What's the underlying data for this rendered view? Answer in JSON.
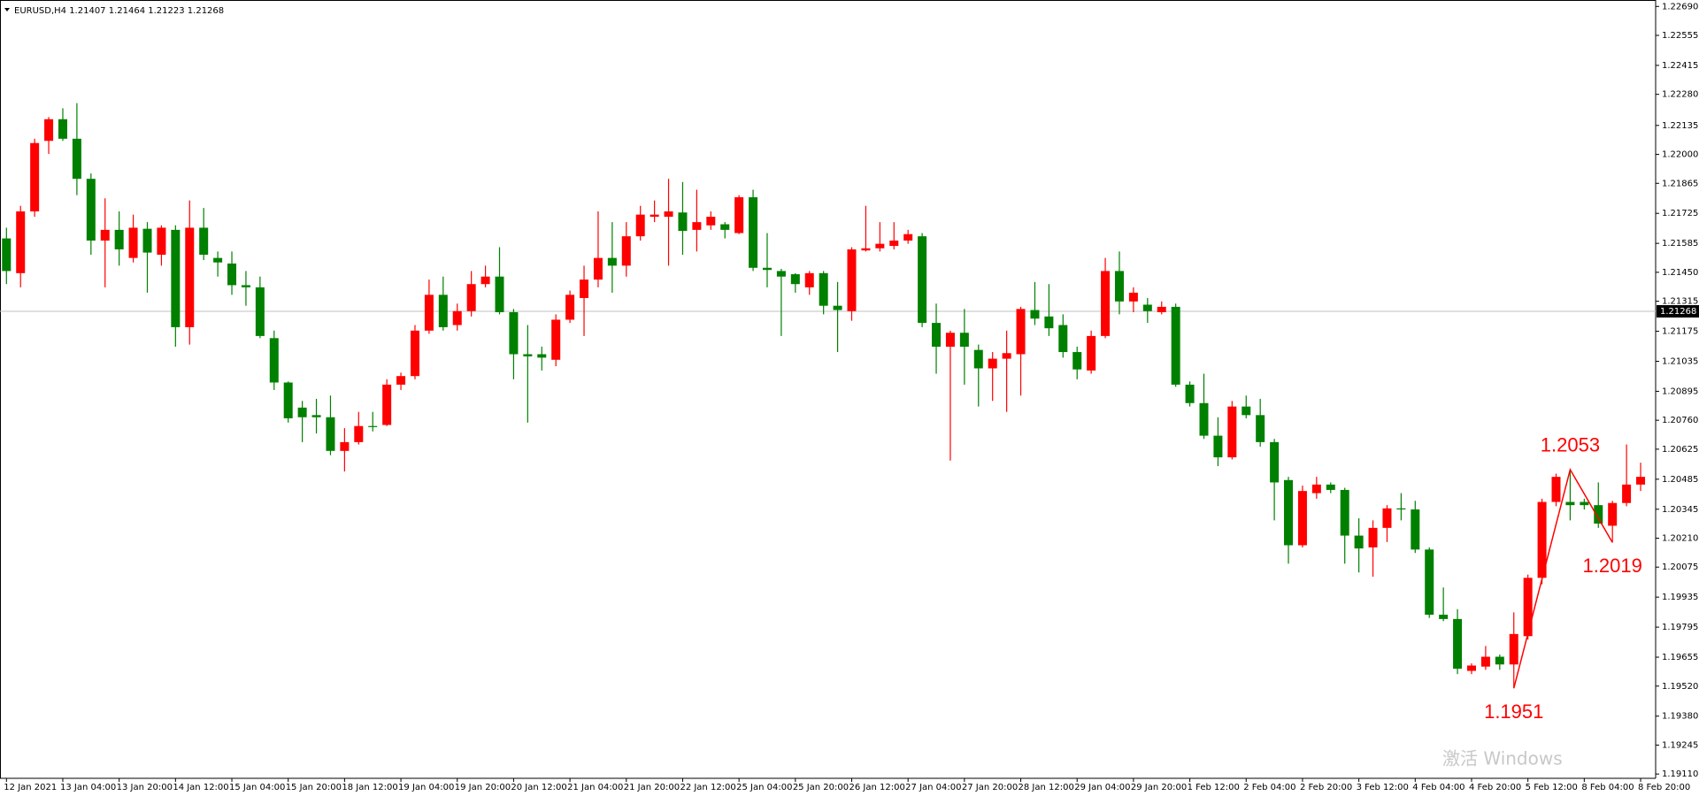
{
  "chart_data": {
    "type": "candlestick",
    "title": "EURUSD,H4  1.21407 1.21464 1.21223 1.21268",
    "categories": [
      "12 Jan 2021",
      null,
      null,
      null,
      "13 Jan 04:00",
      null,
      null,
      null,
      "13 Jan 20:00",
      null,
      null,
      null,
      "14 Jan 12:00",
      null,
      null,
      null,
      "15 Jan 04:00",
      null,
      null,
      null,
      "15 Jan 20:00",
      null,
      null,
      null,
      "18 Jan 12:00",
      null,
      null,
      null,
      "19 Jan 04:00",
      null,
      null,
      null,
      "19 Jan 20:00",
      null,
      null,
      null,
      "20 Jan 12:00",
      null,
      null,
      null,
      "21 Jan 04:00",
      null,
      null,
      null,
      "21 Jan 20:00",
      null,
      null,
      null,
      "22 Jan 12:00",
      null,
      null,
      null,
      "25 Jan 04:00",
      null,
      null,
      null,
      "25 Jan 20:00",
      null,
      null,
      null,
      "26 Jan 12:00",
      null,
      null,
      null,
      "27 Jan 04:00",
      null,
      null,
      null,
      "27 Jan 20:00",
      null,
      null,
      null,
      "28 Jan 12:00",
      null,
      null,
      null,
      "29 Jan 04:00",
      null,
      null,
      null,
      "29 Jan 20:00",
      null,
      null,
      null,
      "1 Feb 12:00",
      null,
      null,
      null,
      "2 Feb 04:00",
      null,
      null,
      null,
      "2 Feb 20:00",
      null,
      null,
      null,
      "3 Feb 12:00",
      null,
      null,
      null,
      "4 Feb 04:00",
      null,
      null,
      null,
      "4 Feb 20:00",
      null,
      null,
      null,
      "5 Feb 12:00",
      null,
      null,
      null,
      "8 Feb 04:00",
      null,
      null,
      null,
      "8 Feb 20:00"
    ],
    "open": [
      1.21608,
      1.21446,
      1.21734,
      1.22063,
      1.22164,
      1.22073,
      1.21886,
      1.21598,
      1.21648,
      1.21517,
      1.21653,
      1.21532,
      1.21648,
      1.21194,
      1.21658,
      1.21517,
      1.21491,
      1.2139,
      1.2138,
      1.21143,
      1.20936,
      1.20819,
      1.20784,
      1.20774,
      1.20617,
      1.20658,
      1.20733,
      1.20738,
      1.20926,
      1.20966,
      1.21178,
      1.21345,
      1.21204,
      1.21269,
      1.21395,
      1.2143,
      1.21264,
      1.21068,
      1.21068,
      1.21042,
      1.21229,
      1.2133,
      1.21416,
      1.21517,
      1.21481,
      1.21618,
      1.21709,
      1.21709,
      1.21729,
      1.21648,
      1.21669,
      1.21674,
      1.21633,
      1.218,
      1.21471,
      1.21456,
      1.21441,
      1.2138,
      1.21446,
      1.21294,
      1.21269,
      1.21552,
      1.21562,
      1.21573,
      1.21598,
      1.21618,
      1.21214,
      1.21103,
      1.21168,
      1.21088,
      1.21002,
      1.21047,
      1.21068,
      1.21274,
      1.21244,
      1.21204,
      1.21078,
      1.20992,
      1.21153,
      1.21456,
      1.21314,
      1.21299,
      1.21264,
      1.21289,
      1.20926,
      1.2084,
      1.20688,
      1.20587,
      1.20824,
      1.20784,
      1.20658,
      1.20481,
      1.20177,
      1.2042,
      1.2046,
      1.20435,
      1.20222,
      1.20167,
      1.20258,
      1.20349,
      1.20344,
      1.20157,
      1.19853,
      1.19833,
      1.19591,
      1.19611,
      1.19657,
      1.19621,
      1.19753,
      1.20025,
      1.20379,
      1.20379,
      1.20379,
      1.20364,
      1.20268,
      1.20374,
      1.2046
    ],
    "high": [
      1.21658,
      1.2176,
      1.22073,
      1.22174,
      1.22215,
      1.22239,
      1.21911,
      1.21795,
      1.21734,
      1.21719,
      1.21684,
      1.21669,
      1.21669,
      1.21785,
      1.2175,
      1.21547,
      1.21547,
      1.21456,
      1.2143,
      1.21178,
      1.20941,
      1.2085,
      1.2086,
      1.20875,
      1.20723,
      1.20799,
      1.20799,
      1.20951,
      1.20982,
      1.21204,
      1.21416,
      1.2143,
      1.21304,
      1.21456,
      1.21481,
      1.21567,
      1.21279,
      1.21204,
      1.21103,
      1.21254,
      1.21365,
      1.21481,
      1.21734,
      1.21684,
      1.21684,
      1.2176,
      1.21785,
      1.21886,
      1.21871,
      1.21835,
      1.21734,
      1.21684,
      1.2181,
      1.21835,
      1.21633,
      1.21466,
      1.21446,
      1.21456,
      1.21456,
      1.21405,
      1.21567,
      1.2176,
      1.21684,
      1.21684,
      1.21648,
      1.21633,
      1.21304,
      1.21178,
      1.21279,
      1.21113,
      1.21078,
      1.21178,
      1.21289,
      1.21405,
      1.21395,
      1.21254,
      1.21103,
      1.21178,
      1.21517,
      1.21547,
      1.2138,
      1.2133,
      1.21314,
      1.21304,
      1.20941,
      1.20977,
      1.20774,
      1.2085,
      1.20875,
      1.2086,
      1.20673,
      1.20496,
      1.20455,
      1.20496,
      1.2047,
      1.20445,
      1.20303,
      1.20293,
      1.20364,
      1.2042,
      1.20384,
      1.20167,
      1.1998,
      1.19879,
      1.19626,
      1.19707,
      1.19667,
      1.19864,
      1.2004,
      1.20394,
      1.20511,
      1.2053,
      1.20394,
      1.2047,
      1.20384,
      1.20647,
      1.20562
    ],
    "low": [
      1.21395,
      1.2138,
      1.21709,
      1.22002,
      1.22063,
      1.2181,
      1.21532,
      1.2138,
      1.21481,
      1.21496,
      1.21355,
      1.21481,
      1.21103,
      1.21113,
      1.21507,
      1.2143,
      1.21345,
      1.21294,
      1.21143,
      1.20901,
      1.20749,
      1.20658,
      1.20698,
      1.20597,
      1.20521,
      1.20647,
      1.20708,
      1.20733,
      1.20901,
      1.20951,
      1.21163,
      1.21178,
      1.21178,
      1.21244,
      1.2138,
      1.21254,
      1.20951,
      1.20749,
      1.20992,
      1.21012,
      1.21214,
      1.21153,
      1.2138,
      1.21355,
      1.2143,
      1.21598,
      1.21684,
      1.21481,
      1.21532,
      1.21547,
      1.21648,
      1.21608,
      1.21628,
      1.21456,
      1.2138,
      1.21153,
      1.21355,
      1.21345,
      1.21254,
      1.21078,
      1.21224,
      1.21547,
      1.21547,
      1.21557,
      1.21583,
      1.21194,
      1.20977,
      1.20572,
      1.20926,
      1.20824,
      1.2085,
      1.20799,
      1.20875,
      1.21204,
      1.21153,
      1.21052,
      1.20951,
      1.20977,
      1.21143,
      1.21254,
      1.21264,
      1.21214,
      1.21254,
      1.20916,
      1.20824,
      1.20673,
      1.20546,
      1.20577,
      1.20769,
      1.20637,
      1.20293,
      1.20091,
      1.20167,
      1.20394,
      1.2042,
      1.20091,
      1.2005,
      1.2003,
      1.20192,
      1.20293,
      1.20141,
      1.19838,
      1.19823,
      1.19576,
      1.19576,
      1.19596,
      1.19596,
      1.1951,
      1.19737,
      1.19995,
      1.20359,
      1.20293,
      1.20344,
      1.20258,
      1.2019,
      1.20359,
      1.2043
    ],
    "close": [
      1.21456,
      1.21734,
      1.22053,
      1.22164,
      1.22073,
      1.21886,
      1.21598,
      1.21648,
      1.21557,
      1.21658,
      1.21542,
      1.21658,
      1.21194,
      1.21658,
      1.21532,
      1.21496,
      1.2139,
      1.2138,
      1.21153,
      1.20936,
      1.20769,
      1.20774,
      1.20774,
      1.20617,
      1.20658,
      1.20733,
      1.20728,
      1.20926,
      1.20966,
      1.21178,
      1.21345,
      1.21194,
      1.21269,
      1.21395,
      1.2143,
      1.21264,
      1.21068,
      1.21058,
      1.21052,
      1.21229,
      1.21345,
      1.21416,
      1.21517,
      1.21481,
      1.21618,
      1.21719,
      1.21719,
      1.21734,
      1.21643,
      1.21684,
      1.21709,
      1.21648,
      1.218,
      1.21471,
      1.21461,
      1.2143,
      1.21395,
      1.21446,
      1.21294,
      1.21274,
      1.21557,
      1.21562,
      1.21583,
      1.21598,
      1.21628,
      1.21214,
      1.21103,
      1.21168,
      1.21103,
      1.21002,
      1.21047,
      1.21073,
      1.21279,
      1.21234,
      1.21189,
      1.21078,
      1.20997,
      1.21153,
      1.21456,
      1.21314,
      1.21355,
      1.21269,
      1.21289,
      1.20926,
      1.2084,
      1.20688,
      1.20587,
      1.20824,
      1.20784,
      1.20658,
      1.2047,
      1.20177,
      1.2043,
      1.2046,
      1.20435,
      1.20222,
      1.20162,
      1.20258,
      1.20349,
      1.20344,
      1.20157,
      1.19853,
      1.19833,
      1.19601,
      1.19616,
      1.19657,
      1.19621,
      1.19763,
      1.20025,
      1.20379,
      1.20496,
      1.20364,
      1.20364,
      1.20278,
      1.20374,
      1.2046,
      1.20496
    ],
    "up_color": "#ff0000",
    "down_color": "#008000",
    "ylim": [
      1.1909,
      1.2272
    ],
    "yticks": [
      {
        "value": 1.2269,
        "label": "1.22690"
      },
      1.22555,
      1.22415,
      {
        "value": 1.2228,
        "label": "1.22280"
      },
      1.22135,
      {
        "value": 1.22,
        "label": "1.22000"
      },
      1.21865,
      1.21725,
      1.21585,
      {
        "value": 1.2145,
        "label": "1.21450"
      },
      1.21315,
      1.21175,
      1.21035,
      1.20895,
      {
        "value": 1.2076,
        "label": "1.20760"
      },
      1.20625,
      1.20485,
      1.20345,
      {
        "value": 1.2021,
        "label": "1.20210"
      },
      1.20075,
      1.19935,
      1.19795,
      1.19655,
      {
        "value": 1.1952,
        "label": "1.19520"
      },
      {
        "value": 1.1938,
        "label": "1.19380"
      },
      1.19245,
      {
        "value": 1.1911,
        "label": "1.19110"
      }
    ],
    "current_price": 1.21268,
    "zigzag": [
      1.1951,
      1.2053,
      1.2019
    ],
    "zigzag_color": "#ff0000",
    "watermark": "激活 Windows"
  }
}
